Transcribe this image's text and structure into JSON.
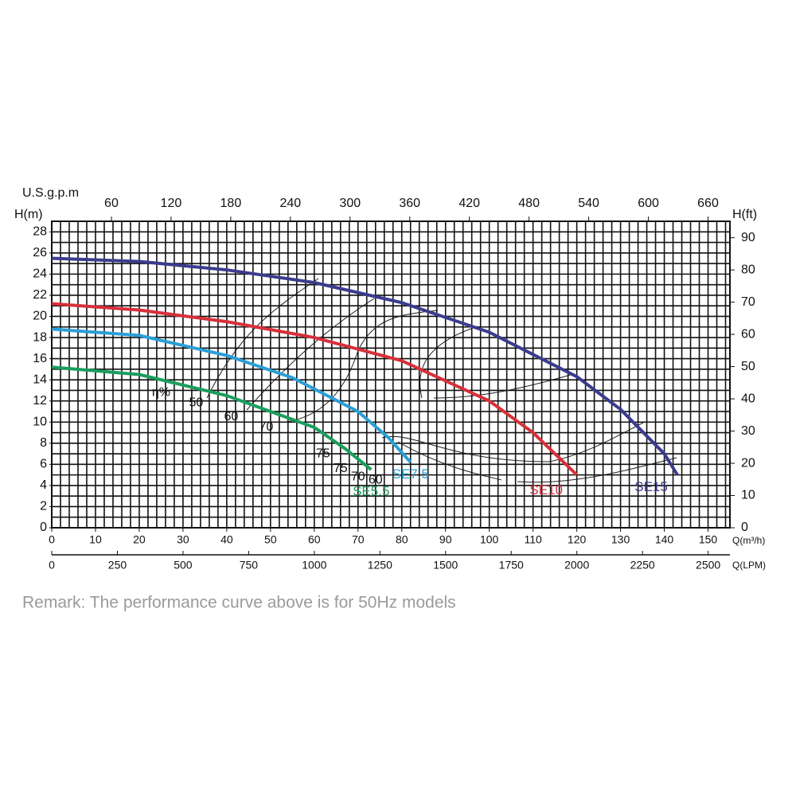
{
  "chart_data": {
    "type": "line",
    "remark": "Remark: The performance curve above is for 50Hz models",
    "ylabel": "H(m)",
    "y2label": "H(ft)",
    "x2label": "U.S.g.p.m",
    "xlabel": "Q(m³/h)",
    "x3label": "Q(LPM)",
    "xlim": [
      0,
      155
    ],
    "xticks": [
      0,
      10,
      20,
      30,
      40,
      50,
      60,
      70,
      80,
      90,
      100,
      110,
      120,
      130,
      140,
      150
    ],
    "x2lim": [
      0,
      682
    ],
    "x2ticks": [
      60,
      120,
      180,
      240,
      300,
      360,
      420,
      480,
      540,
      600,
      660
    ],
    "x3lim": [
      0,
      2583
    ],
    "x3ticks": [
      0,
      250,
      500,
      750,
      1000,
      1250,
      1500,
      1750,
      2000,
      2250,
      2500
    ],
    "ylim": [
      0,
      29
    ],
    "yticks": [
      0,
      2,
      4,
      6,
      8,
      10,
      12,
      14,
      16,
      18,
      20,
      22,
      24,
      26,
      28
    ],
    "y2lim": [
      0,
      95.1
    ],
    "y2ticks": [
      0,
      10,
      20,
      30,
      40,
      50,
      60,
      70,
      80,
      90
    ],
    "grid": true,
    "xgrid_step": 2,
    "ygrid_step": 1,
    "series": [
      {
        "name": "SE5.5",
        "color": "#1a9e5c",
        "x": [
          0,
          20,
          40,
          60,
          67,
          73
        ],
        "values": [
          15.2,
          14.5,
          12.5,
          9.5,
          7.5,
          5.5
        ],
        "label_at": [
          73,
          3.4
        ]
      },
      {
        "name": "SE7.5",
        "color": "#2a9fd6",
        "x": [
          0,
          20,
          40,
          55,
          70,
          77,
          82
        ],
        "values": [
          18.8,
          18.2,
          16.3,
          14.2,
          11,
          8.5,
          6.2
        ],
        "label_at": [
          82,
          5
        ]
      },
      {
        "name": "SE10",
        "color": "#d7303a",
        "x": [
          0,
          20,
          40,
          60,
          80,
          100,
          110,
          115,
          120
        ],
        "values": [
          21.2,
          20.6,
          19.5,
          18,
          15.8,
          12,
          9,
          7,
          5
        ],
        "label_at": [
          113,
          3.5
        ]
      },
      {
        "name": "SE15",
        "color": "#3b3b8e",
        "x": [
          0,
          20,
          40,
          60,
          80,
          100,
          120,
          130,
          140,
          143
        ],
        "values": [
          25.5,
          25.2,
          24.4,
          23.2,
          21.3,
          18.5,
          14.3,
          11.2,
          7,
          5
        ],
        "label_at": [
          137,
          3.8
        ]
      }
    ],
    "annotations": [
      {
        "text": "η%",
        "x": 25,
        "y": 12.8
      },
      {
        "text": "50",
        "x": 33,
        "y": 11.8
      },
      {
        "text": "60",
        "x": 41,
        "y": 10.5
      },
      {
        "text": "70",
        "x": 49,
        "y": 9.5
      },
      {
        "text": "75",
        "x": 62,
        "y": 7
      },
      {
        "text": "75",
        "x": 66,
        "y": 5.6
      },
      {
        "text": "70",
        "x": 70,
        "y": 4.8
      },
      {
        "text": "60",
        "x": 74,
        "y": 4.5
      }
    ]
  }
}
